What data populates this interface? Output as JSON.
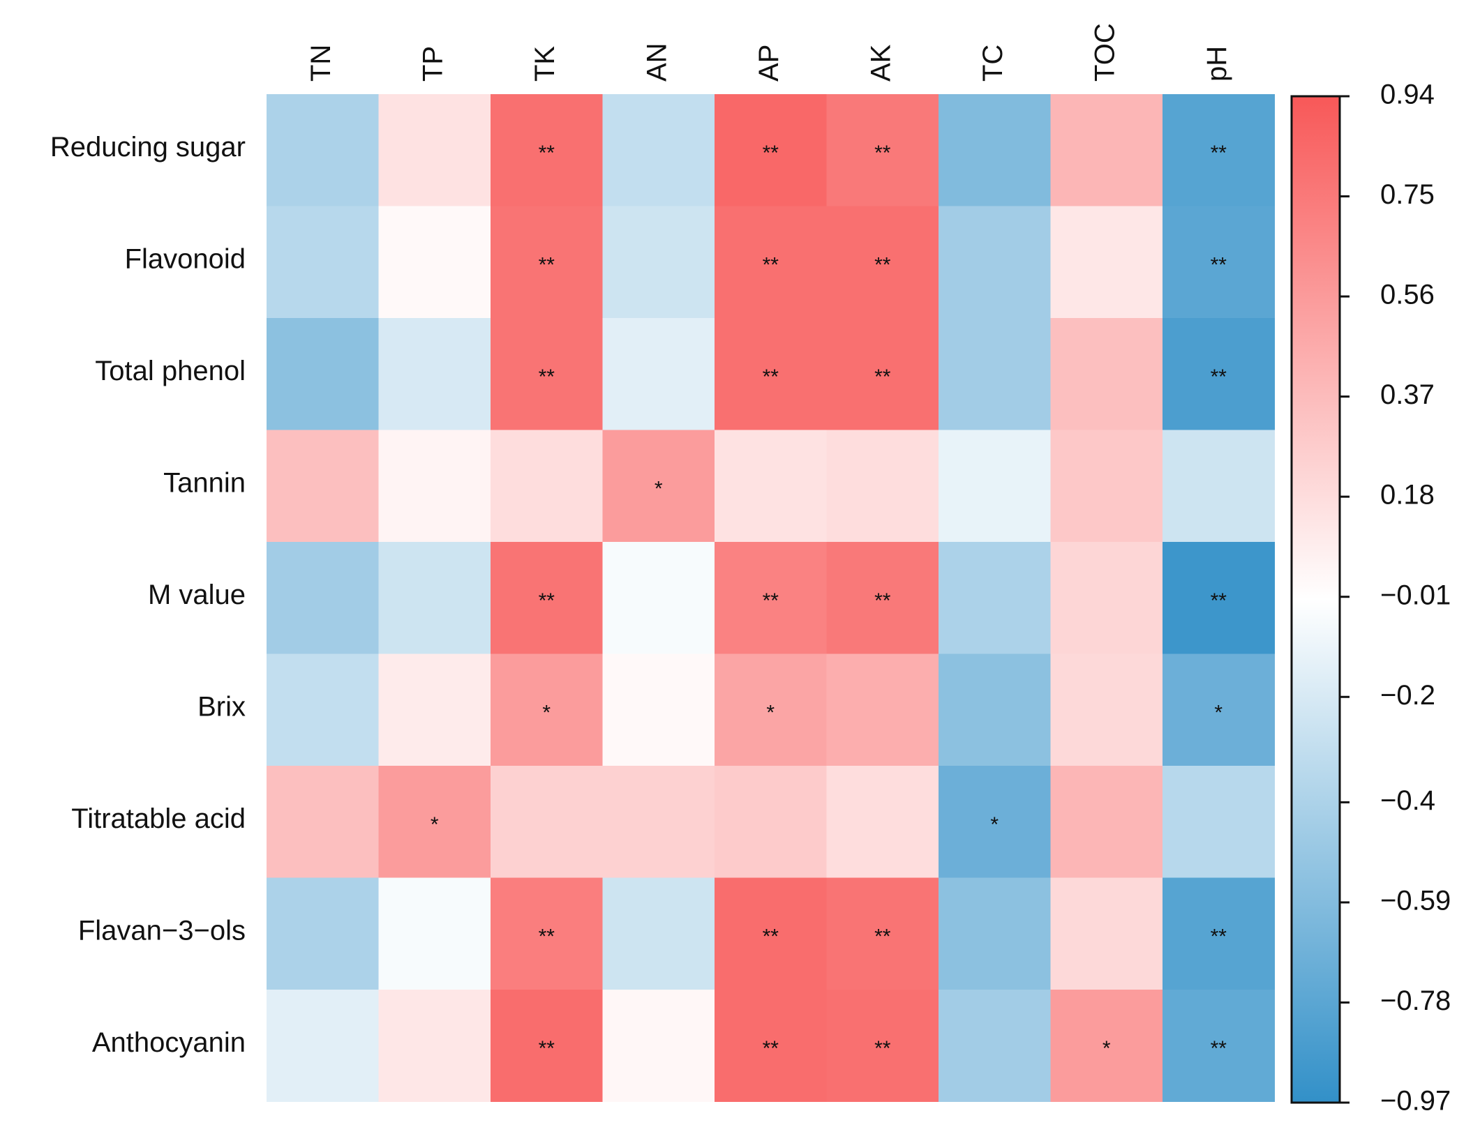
{
  "chart_data": {
    "type": "heatmap",
    "rows": [
      "Reducing sugar",
      "Flavonoid",
      "Total phenol",
      "Tannin",
      "M value",
      "Brix",
      "Titratable acid",
      "Flavan−3−ols",
      "Anthocyanin"
    ],
    "columns": [
      "TN",
      "TP",
      "TK",
      "AN",
      "AP",
      "AK",
      "TC",
      "TOC",
      "pH"
    ],
    "values": [
      [
        -0.4,
        0.15,
        0.8,
        -0.3,
        0.85,
        0.75,
        -0.6,
        0.4,
        -0.8
      ],
      [
        -0.35,
        0.02,
        0.78,
        -0.25,
        0.8,
        0.8,
        -0.45,
        0.12,
        -0.78
      ],
      [
        -0.55,
        -0.2,
        0.78,
        -0.15,
        0.8,
        0.8,
        -0.45,
        0.35,
        -0.85
      ],
      [
        0.35,
        0.05,
        0.18,
        0.55,
        0.15,
        0.18,
        -0.12,
        0.3,
        -0.25
      ],
      [
        -0.45,
        -0.25,
        0.78,
        -0.05,
        0.7,
        0.75,
        -0.4,
        0.22,
        -0.92
      ],
      [
        -0.3,
        0.1,
        0.55,
        0.02,
        0.5,
        0.45,
        -0.55,
        0.2,
        -0.7
      ],
      [
        0.35,
        0.55,
        0.25,
        0.25,
        0.28,
        0.18,
        -0.7,
        0.4,
        -0.35
      ],
      [
        -0.4,
        -0.05,
        0.72,
        -0.25,
        0.82,
        0.78,
        -0.55,
        0.2,
        -0.8
      ],
      [
        -0.15,
        0.12,
        0.82,
        0.03,
        0.82,
        0.8,
        -0.45,
        0.55,
        -0.75
      ]
    ],
    "stars": [
      [
        null,
        null,
        "**",
        null,
        "**",
        "**",
        null,
        null,
        "**"
      ],
      [
        null,
        null,
        "**",
        null,
        "**",
        "**",
        null,
        null,
        "**"
      ],
      [
        null,
        null,
        "**",
        null,
        "**",
        "**",
        null,
        null,
        "**"
      ],
      [
        null,
        null,
        null,
        "*",
        null,
        null,
        null,
        null,
        null
      ],
      [
        null,
        null,
        "**",
        null,
        "**",
        "**",
        null,
        null,
        "**"
      ],
      [
        null,
        null,
        "*",
        null,
        "*",
        null,
        null,
        null,
        "*"
      ],
      [
        null,
        "*",
        null,
        null,
        null,
        null,
        "*",
        null,
        null
      ],
      [
        null,
        null,
        "**",
        null,
        "**",
        "**",
        null,
        null,
        "**"
      ],
      [
        null,
        null,
        "**",
        null,
        "**",
        "**",
        null,
        "*",
        "**"
      ]
    ],
    "colormap": [
      "#3290c8",
      "#ffffff",
      "#f85858"
    ],
    "clim": [
      -0.97,
      0.94
    ],
    "cticks": [
      {
        "value": -0.97,
        "label": "−0.97"
      },
      {
        "value": -0.78,
        "label": "−0.78"
      },
      {
        "value": -0.59,
        "label": "−0.59"
      },
      {
        "value": -0.4,
        "label": "−0.4"
      },
      {
        "value": -0.2,
        "label": "−0.2"
      },
      {
        "value": -0.01,
        "label": "−0.01"
      },
      0.18,
      0.37,
      0.56,
      0.75,
      0.94
    ]
  }
}
